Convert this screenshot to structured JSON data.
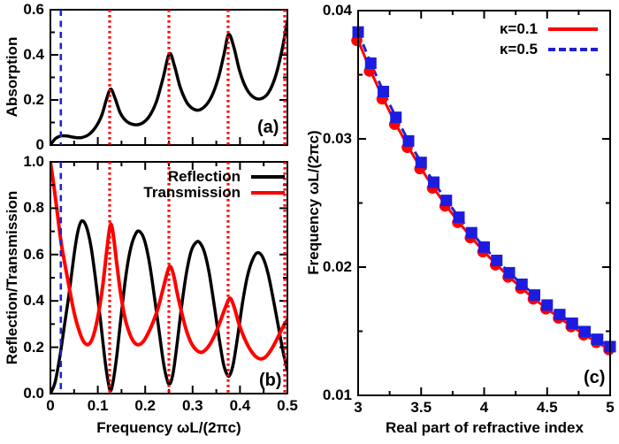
{
  "figure_type": "three-panel scientific figure",
  "panel_labels": {
    "a": "(a)",
    "b": "(b)",
    "c": "(c)"
  },
  "colors": {
    "black": "#000000",
    "red": "#ff0000",
    "blue_dashed": "#2222cc",
    "blue_marker": "#1c1ce0"
  },
  "chart_data": [
    {
      "panel": "a",
      "type": "line",
      "panel_label": "(a)",
      "ylabel": "Absorption",
      "xlabel": "",
      "xlim": [
        0,
        0.5
      ],
      "ylim": [
        0,
        0.6
      ],
      "xticks": {
        "major": [
          0,
          0.1,
          0.2,
          0.3,
          0.4,
          0.5
        ],
        "minor": [
          0.05,
          0.15,
          0.25,
          0.35,
          0.45
        ],
        "labels": []
      },
      "yticks": {
        "major": [
          0,
          0.2,
          0.4,
          0.6
        ],
        "minor": [
          0.1,
          0.3,
          0.5
        ],
        "labels": [
          "0",
          "0.2",
          "0.4",
          "0.6"
        ]
      },
      "vlines": {
        "red_dotted": [
          0.125,
          0.25,
          0.375,
          0.5
        ],
        "blue_dashed": [
          0.022
        ]
      },
      "series": [
        {
          "name": "Absorption",
          "color": "#000000",
          "width": 3.5,
          "points": [
            [
              0.0,
              0.0
            ],
            [
              0.01,
              0.028
            ],
            [
              0.022,
              0.04
            ],
            [
              0.035,
              0.04
            ],
            [
              0.05,
              0.034
            ],
            [
              0.065,
              0.033
            ],
            [
              0.08,
              0.045
            ],
            [
              0.095,
              0.078
            ],
            [
              0.108,
              0.13
            ],
            [
              0.118,
              0.2
            ],
            [
              0.127,
              0.248
            ],
            [
              0.136,
              0.21
            ],
            [
              0.148,
              0.14
            ],
            [
              0.162,
              0.103
            ],
            [
              0.18,
              0.09
            ],
            [
              0.196,
              0.1
            ],
            [
              0.21,
              0.132
            ],
            [
              0.224,
              0.195
            ],
            [
              0.238,
              0.3
            ],
            [
              0.251,
              0.405
            ],
            [
              0.262,
              0.35
            ],
            [
              0.274,
              0.255
            ],
            [
              0.29,
              0.182
            ],
            [
              0.308,
              0.155
            ],
            [
              0.324,
              0.168
            ],
            [
              0.34,
              0.215
            ],
            [
              0.354,
              0.295
            ],
            [
              0.366,
              0.4
            ],
            [
              0.376,
              0.49
            ],
            [
              0.387,
              0.435
            ],
            [
              0.399,
              0.33
            ],
            [
              0.413,
              0.252
            ],
            [
              0.428,
              0.213
            ],
            [
              0.444,
              0.205
            ],
            [
              0.46,
              0.232
            ],
            [
              0.475,
              0.305
            ],
            [
              0.489,
              0.425
            ],
            [
              0.5,
              0.55
            ]
          ]
        }
      ]
    },
    {
      "panel": "b",
      "type": "line",
      "panel_label": "(b)",
      "ylabel": "Reflection/Transmission",
      "xlabel": "Frequency ωL/(2πc)",
      "xlim": [
        0,
        0.5
      ],
      "ylim": [
        0,
        1
      ],
      "xticks": {
        "major": [
          0,
          0.1,
          0.2,
          0.3,
          0.4,
          0.5
        ],
        "minor": [
          0.05,
          0.15,
          0.25,
          0.35,
          0.45
        ],
        "labels": [
          "0",
          "0.1",
          "0.2",
          "0.3",
          "0.4",
          "0.5"
        ]
      },
      "yticks": {
        "major": [
          0,
          0.2,
          0.4,
          0.6,
          0.8,
          1.0
        ],
        "minor": [
          0.1,
          0.3,
          0.5,
          0.7,
          0.9
        ],
        "labels": [
          "0.0",
          "0.2",
          "0.4",
          "0.6",
          "0.8",
          "1.0"
        ]
      },
      "vlines": {
        "red_dotted": [
          0.125,
          0.25,
          0.375,
          0.5
        ],
        "blue_dashed": [
          0.022
        ]
      },
      "legend_position": "top right",
      "series": [
        {
          "name": "Reflection",
          "color": "#000000",
          "width": 3.5,
          "points": [
            [
              0.0,
              0.0
            ],
            [
              0.01,
              0.05
            ],
            [
              0.02,
              0.16
            ],
            [
              0.03,
              0.3
            ],
            [
              0.04,
              0.44
            ],
            [
              0.05,
              0.6
            ],
            [
              0.058,
              0.7
            ],
            [
              0.066,
              0.745
            ],
            [
              0.076,
              0.72
            ],
            [
              0.086,
              0.63
            ],
            [
              0.096,
              0.48
            ],
            [
              0.106,
              0.31
            ],
            [
              0.116,
              0.13
            ],
            [
              0.122,
              0.05
            ],
            [
              0.127,
              0.012
            ],
            [
              0.133,
              0.06
            ],
            [
              0.141,
              0.18
            ],
            [
              0.15,
              0.35
            ],
            [
              0.16,
              0.52
            ],
            [
              0.17,
              0.632
            ],
            [
              0.18,
              0.69
            ],
            [
              0.188,
              0.7
            ],
            [
              0.198,
              0.665
            ],
            [
              0.208,
              0.575
            ],
            [
              0.218,
              0.44
            ],
            [
              0.228,
              0.29
            ],
            [
              0.238,
              0.14
            ],
            [
              0.246,
              0.06
            ],
            [
              0.252,
              0.042
            ],
            [
              0.259,
              0.09
            ],
            [
              0.267,
              0.21
            ],
            [
              0.277,
              0.38
            ],
            [
              0.287,
              0.52
            ],
            [
              0.297,
              0.615
            ],
            [
              0.307,
              0.652
            ],
            [
              0.315,
              0.652
            ],
            [
              0.325,
              0.61
            ],
            [
              0.335,
              0.52
            ],
            [
              0.345,
              0.39
            ],
            [
              0.355,
              0.25
            ],
            [
              0.365,
              0.13
            ],
            [
              0.372,
              0.085
            ],
            [
              0.378,
              0.078
            ],
            [
              0.386,
              0.13
            ],
            [
              0.396,
              0.26
            ],
            [
              0.406,
              0.4
            ],
            [
              0.416,
              0.51
            ],
            [
              0.427,
              0.58
            ],
            [
              0.437,
              0.608
            ],
            [
              0.448,
              0.588
            ],
            [
              0.459,
              0.52
            ],
            [
              0.47,
              0.41
            ],
            [
              0.48,
              0.3
            ],
            [
              0.49,
              0.19
            ],
            [
              0.5,
              0.1
            ]
          ]
        },
        {
          "name": "Transmission",
          "color": "#ff0000",
          "width": 4,
          "points": [
            [
              0.0,
              1.0
            ],
            [
              0.007,
              0.9
            ],
            [
              0.014,
              0.79
            ],
            [
              0.022,
              0.66
            ],
            [
              0.03,
              0.565
            ],
            [
              0.04,
              0.455
            ],
            [
              0.05,
              0.35
            ],
            [
              0.06,
              0.275
            ],
            [
              0.07,
              0.225
            ],
            [
              0.08,
              0.212
            ],
            [
              0.09,
              0.245
            ],
            [
              0.1,
              0.33
            ],
            [
              0.11,
              0.46
            ],
            [
              0.118,
              0.6
            ],
            [
              0.125,
              0.715
            ],
            [
              0.129,
              0.726
            ],
            [
              0.134,
              0.665
            ],
            [
              0.141,
              0.545
            ],
            [
              0.149,
              0.42
            ],
            [
              0.158,
              0.32
            ],
            [
              0.168,
              0.255
            ],
            [
              0.178,
              0.218
            ],
            [
              0.188,
              0.212
            ],
            [
              0.198,
              0.23
            ],
            [
              0.208,
              0.268
            ],
            [
              0.218,
              0.315
            ],
            [
              0.228,
              0.375
            ],
            [
              0.238,
              0.455
            ],
            [
              0.247,
              0.525
            ],
            [
              0.253,
              0.548
            ],
            [
              0.26,
              0.51
            ],
            [
              0.268,
              0.43
            ],
            [
              0.278,
              0.34
            ],
            [
              0.288,
              0.265
            ],
            [
              0.298,
              0.215
            ],
            [
              0.308,
              0.188
            ],
            [
              0.318,
              0.178
            ],
            [
              0.328,
              0.19
            ],
            [
              0.338,
              0.218
            ],
            [
              0.348,
              0.258
            ],
            [
              0.358,
              0.31
            ],
            [
              0.368,
              0.365
            ],
            [
              0.376,
              0.405
            ],
            [
              0.381,
              0.408
            ],
            [
              0.389,
              0.365
            ],
            [
              0.398,
              0.3
            ],
            [
              0.408,
              0.245
            ],
            [
              0.42,
              0.195
            ],
            [
              0.432,
              0.162
            ],
            [
              0.443,
              0.15
            ],
            [
              0.454,
              0.158
            ],
            [
              0.466,
              0.19
            ],
            [
              0.478,
              0.235
            ],
            [
              0.49,
              0.285
            ],
            [
              0.5,
              0.32
            ]
          ]
        }
      ]
    },
    {
      "panel": "c",
      "type": "scatter-line",
      "panel_label": "(c)",
      "ylabel": "Frequency ωL/(2πc)",
      "xlabel": "Real part of refractive index",
      "xlim": [
        3,
        5
      ],
      "ylim": [
        0.01,
        0.04
      ],
      "xticks": {
        "major": [
          3,
          3.5,
          4,
          4.5,
          5
        ],
        "minor": [
          3.25,
          3.75,
          4.25,
          4.75
        ],
        "labels": [
          "3",
          "3.5",
          "4",
          "4.5",
          "5"
        ]
      },
      "yticks": {
        "major": [
          0.01,
          0.02,
          0.03,
          0.04
        ],
        "minor": [
          0.015,
          0.025,
          0.035
        ],
        "labels": [
          "0.01",
          "0.02",
          "0.03",
          "0.04"
        ]
      },
      "legend_position": "top right",
      "x": [
        3.0,
        3.1,
        3.2,
        3.3,
        3.4,
        3.5,
        3.6,
        3.7,
        3.8,
        3.9,
        4.0,
        4.1,
        4.2,
        4.3,
        4.4,
        4.5,
        4.6,
        4.7,
        4.8,
        4.9,
        5.0
      ],
      "series": [
        {
          "name": "κ=0.1",
          "color": "#ff0000",
          "line": "solid",
          "marker": "circle",
          "values": [
            0.03767,
            0.03528,
            0.03311,
            0.03113,
            0.02933,
            0.02767,
            0.02616,
            0.02476,
            0.02348,
            0.02229,
            0.02119,
            0.02017,
            0.01922,
            0.01834,
            0.01751,
            0.01674,
            0.01602,
            0.01535,
            0.01471,
            0.01412,
            0.01356
          ]
        },
        {
          "name": "κ=0.5",
          "color": "#2222cc",
          "line": "dashed",
          "marker": "square",
          "marker_color": "#1c1ce0",
          "values": [
            0.03833,
            0.0359,
            0.03369,
            0.03168,
            0.02984,
            0.02816,
            0.02662,
            0.0252,
            0.02389,
            0.02268,
            0.02156,
            0.02052,
            0.01956,
            0.01866,
            0.01782,
            0.01704,
            0.0163,
            0.01562,
            0.01497,
            0.01437,
            0.0138
          ]
        }
      ]
    }
  ]
}
